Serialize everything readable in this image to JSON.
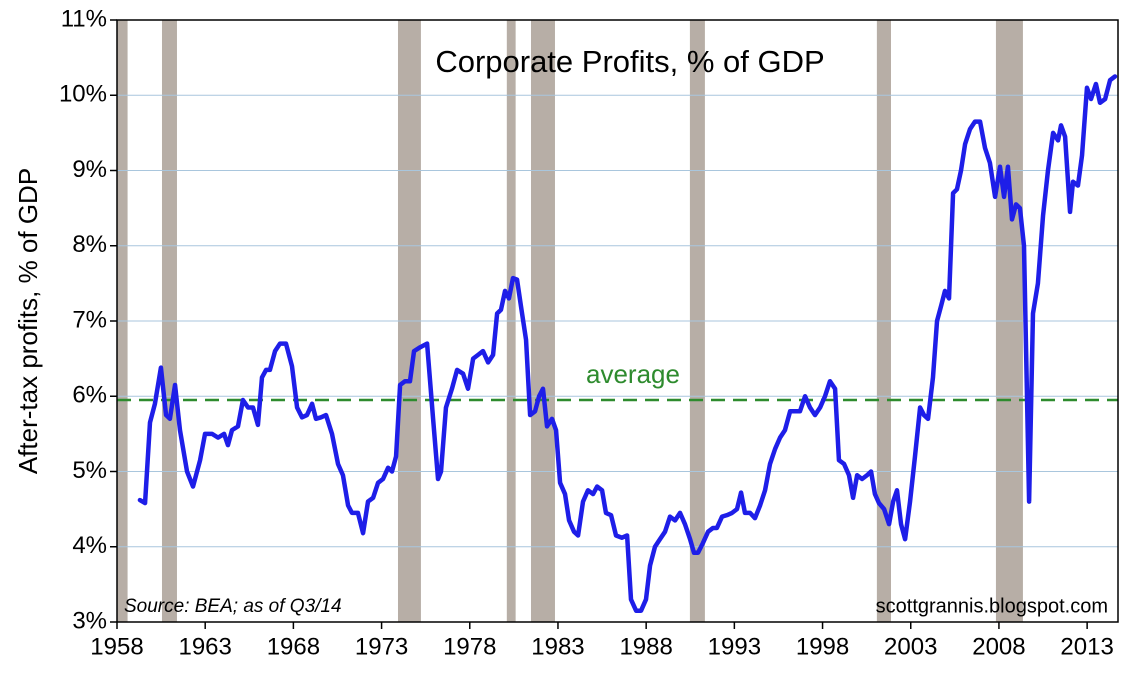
{
  "chart_data": {
    "type": "line",
    "title": "Corporate Profits, % of GDP",
    "y_label": "After-tax profits, % of GDP",
    "source": "Source: BEA; as of Q3/14",
    "credit": "scottgrannis.blogspot.com",
    "average": {
      "label": "average",
      "value": 5.95,
      "color": "#2e8b2e"
    },
    "shaded_periods": [
      [
        1958.0,
        1958.6
      ],
      [
        1960.55,
        1961.4
      ],
      [
        1973.93,
        1975.23
      ],
      [
        1980.1,
        1980.6
      ],
      [
        1981.47,
        1982.83
      ],
      [
        1990.48,
        1991.33
      ],
      [
        2001.08,
        2001.88
      ],
      [
        2007.83,
        2009.36
      ]
    ],
    "shade_color": "#b7aea6",
    "xlim": [
      1958,
      2014.75
    ],
    "xticks": [
      1958,
      1963,
      1968,
      1973,
      1978,
      1983,
      1988,
      1993,
      1998,
      2003,
      2008,
      2013
    ],
    "ylim": [
      3,
      11
    ],
    "yticks": [
      {
        "value": 3,
        "label": "3%"
      },
      {
        "value": 4,
        "label": "4%"
      },
      {
        "value": 5,
        "label": "5%"
      },
      {
        "value": 6,
        "label": "6%"
      },
      {
        "value": 7,
        "label": "7%"
      },
      {
        "value": 8,
        "label": "8%"
      },
      {
        "value": 9,
        "label": "9%"
      },
      {
        "value": 10,
        "label": "10%"
      },
      {
        "value": 11,
        "label": "11%"
      }
    ],
    "grid": true,
    "x": [
      1959.3,
      1959.59,
      1959.87,
      1960.15,
      1960.49,
      1960.78,
      1961.0,
      1961.29,
      1961.57,
      1961.97,
      1962.31,
      1962.71,
      1962.99,
      1963.39,
      1963.73,
      1964.07,
      1964.29,
      1964.52,
      1964.86,
      1965.14,
      1965.43,
      1965.71,
      1965.99,
      1966.22,
      1966.45,
      1966.67,
      1966.96,
      1967.24,
      1967.58,
      1967.92,
      1968.21,
      1968.49,
      1968.77,
      1969.06,
      1969.28,
      1969.57,
      1969.85,
      1970.19,
      1970.53,
      1970.81,
      1971.1,
      1971.32,
      1971.66,
      1971.95,
      1972.23,
      1972.52,
      1972.8,
      1973.08,
      1973.37,
      1973.59,
      1973.82,
      1974.05,
      1974.33,
      1974.61,
      1974.84,
      1975.18,
      1975.58,
      1975.92,
      1976.2,
      1976.37,
      1976.65,
      1976.99,
      1977.28,
      1977.62,
      1977.9,
      1978.19,
      1978.47,
      1978.75,
      1979.04,
      1979.32,
      1979.55,
      1979.77,
      1980.0,
      1980.22,
      1980.45,
      1980.68,
      1980.9,
      1981.19,
      1981.42,
      1981.7,
      1981.93,
      1982.15,
      1982.38,
      1982.66,
      1982.89,
      1983.12,
      1983.4,
      1983.63,
      1983.91,
      1984.14,
      1984.42,
      1984.7,
      1984.99,
      1985.22,
      1985.5,
      1985.72,
      1986.01,
      1986.29,
      1986.63,
      1986.92,
      1987.14,
      1987.43,
      1987.71,
      1987.99,
      1988.22,
      1988.5,
      1988.78,
      1989.07,
      1989.35,
      1989.64,
      1989.92,
      1990.2,
      1990.49,
      1990.71,
      1990.94,
      1991.22,
      1991.51,
      1991.79,
      1992.01,
      1992.3,
      1992.58,
      1992.87,
      1993.15,
      1993.38,
      1993.6,
      1993.89,
      1994.17,
      1994.46,
      1994.74,
      1995.02,
      1995.31,
      1995.59,
      1995.87,
      1996.16,
      1996.44,
      1996.72,
      1997.01,
      1997.29,
      1997.57,
      1997.86,
      1998.14,
      1998.42,
      1998.71,
      1998.93,
      1999.22,
      1999.5,
      1999.73,
      1999.96,
      2000.24,
      2000.52,
      2000.75,
      2000.97,
      2001.2,
      2001.49,
      2001.77,
      2002.0,
      2002.22,
      2002.45,
      2002.68,
      2002.96,
      2003.24,
      2003.53,
      2003.75,
      2003.98,
      2004.26,
      2004.49,
      2004.72,
      2004.94,
      2005.17,
      2005.4,
      2005.62,
      2005.85,
      2006.08,
      2006.36,
      2006.64,
      2006.93,
      2007.21,
      2007.49,
      2007.78,
      2008.06,
      2008.29,
      2008.51,
      2008.74,
      2008.97,
      2009.19,
      2009.42,
      2009.71,
      2009.93,
      2010.21,
      2010.5,
      2010.78,
      2011.07,
      2011.35,
      2011.52,
      2011.75,
      2012.03,
      2012.2,
      2012.48,
      2012.71,
      2012.99,
      2013.22,
      2013.5,
      2013.73,
      2014.02,
      2014.3,
      2014.58
    ],
    "series": [
      {
        "name": "After-tax profits",
        "color": "#1e1ee8",
        "values": [
          4.62,
          4.58,
          5.65,
          5.9,
          6.38,
          5.75,
          5.7,
          6.15,
          5.55,
          5.0,
          4.8,
          5.15,
          5.5,
          5.5,
          5.45,
          5.5,
          5.35,
          5.55,
          5.6,
          5.95,
          5.85,
          5.85,
          5.62,
          6.25,
          6.35,
          6.35,
          6.6,
          6.7,
          6.7,
          6.4,
          5.85,
          5.72,
          5.75,
          5.9,
          5.7,
          5.72,
          5.75,
          5.5,
          5.1,
          4.95,
          4.55,
          4.45,
          4.45,
          4.18,
          4.6,
          4.65,
          4.85,
          4.9,
          5.05,
          5.0,
          5.2,
          6.15,
          6.2,
          6.2,
          6.6,
          6.65,
          6.7,
          5.7,
          4.9,
          5.0,
          5.85,
          6.1,
          6.35,
          6.3,
          6.1,
          6.5,
          6.55,
          6.6,
          6.45,
          6.55,
          7.1,
          7.15,
          7.4,
          7.3,
          7.57,
          7.55,
          7.2,
          6.75,
          5.75,
          5.8,
          6.0,
          6.1,
          5.6,
          5.7,
          5.55,
          4.85,
          4.7,
          4.35,
          4.2,
          4.15,
          4.6,
          4.75,
          4.7,
          4.8,
          4.75,
          4.45,
          4.42,
          4.15,
          4.12,
          4.15,
          3.3,
          3.15,
          3.15,
          3.3,
          3.75,
          4.0,
          4.1,
          4.2,
          4.4,
          4.35,
          4.45,
          4.3,
          4.1,
          3.92,
          3.92,
          4.05,
          4.2,
          4.25,
          4.25,
          4.4,
          4.42,
          4.45,
          4.5,
          4.72,
          4.45,
          4.45,
          4.38,
          4.55,
          4.75,
          5.1,
          5.3,
          5.45,
          5.55,
          5.8,
          5.8,
          5.8,
          6.0,
          5.85,
          5.75,
          5.85,
          6.0,
          6.2,
          6.1,
          5.15,
          5.1,
          4.95,
          4.65,
          4.95,
          4.9,
          4.95,
          5.0,
          4.7,
          4.58,
          4.5,
          4.3,
          4.6,
          4.75,
          4.3,
          4.1,
          4.6,
          5.2,
          5.85,
          5.75,
          5.7,
          6.25,
          7.0,
          7.2,
          7.4,
          7.3,
          8.7,
          8.75,
          9.0,
          9.35,
          9.55,
          9.65,
          9.65,
          9.3,
          9.1,
          8.65,
          9.05,
          8.65,
          9.05,
          8.35,
          8.55,
          8.5,
          8.0,
          4.6,
          7.1,
          7.5,
          8.4,
          9.0,
          9.5,
          9.4,
          9.6,
          9.45,
          8.45,
          8.85,
          8.8,
          9.2,
          10.1,
          9.95,
          10.15,
          9.9,
          9.95,
          10.2,
          10.25
        ]
      }
    ]
  }
}
